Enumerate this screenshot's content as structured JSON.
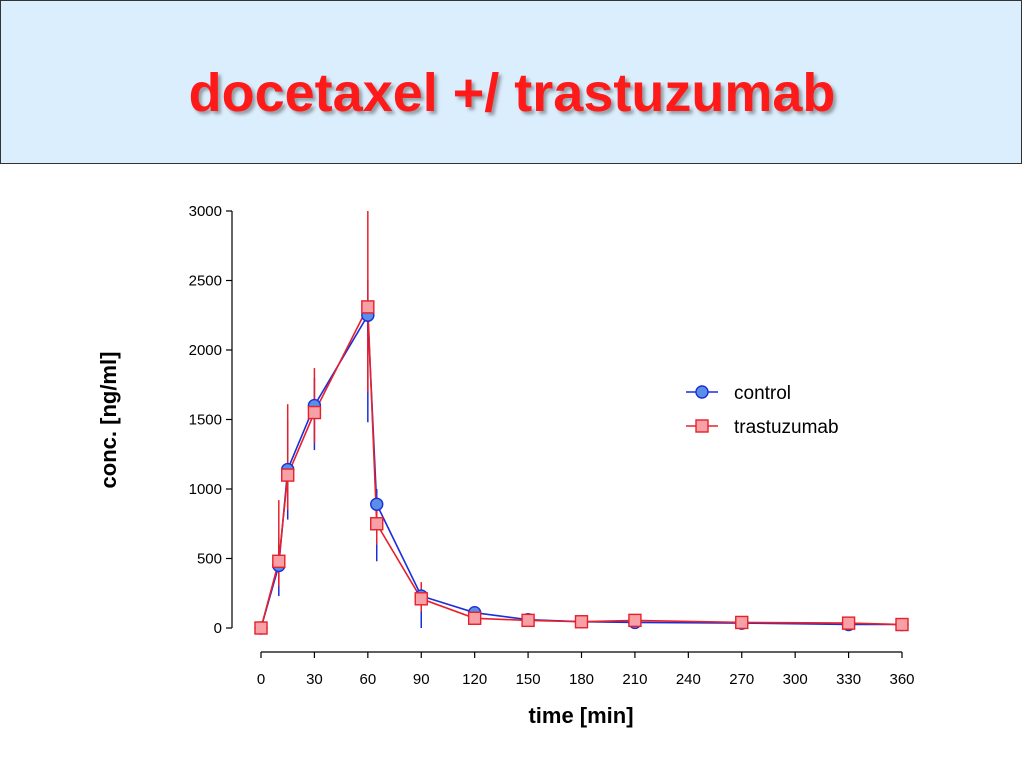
{
  "slide": {
    "title": "docetaxel +/ trastuzumab",
    "title_color": "#ff1a1a",
    "banner_color": "#dbeefe"
  },
  "chart_data": {
    "type": "line",
    "xlabel": "time [min]",
    "ylabel": "conc. [ng/ml]",
    "xlim": [
      0,
      360
    ],
    "ylim": [
      0,
      3000
    ],
    "x_ticks": [
      0,
      30,
      60,
      90,
      120,
      150,
      180,
      210,
      240,
      270,
      300,
      330,
      360
    ],
    "y_ticks": [
      0,
      500,
      1000,
      1500,
      2000,
      2500,
      3000
    ],
    "legend_position": "right",
    "grid": false,
    "series": [
      {
        "name": "control",
        "marker": "circle",
        "line_color": "#1a2fd8",
        "fill_color": "#5b8ee6",
        "points": [
          {
            "x": 0,
            "y": 0
          },
          {
            "x": 10,
            "y": 450,
            "err_low": 230,
            "err_high": 650
          },
          {
            "x": 15,
            "y": 1140,
            "err_low": 780,
            "err_high": 1500
          },
          {
            "x": 30,
            "y": 1600,
            "err_low": 1280,
            "err_high": 1800
          },
          {
            "x": 60,
            "y": 2250,
            "err_low": 1480,
            "err_high": 2500
          },
          {
            "x": 65,
            "y": 890,
            "err_low": 480,
            "err_high": 1000
          },
          {
            "x": 90,
            "y": 230,
            "err_low": 0,
            "err_high": 300
          },
          {
            "x": 120,
            "y": 110
          },
          {
            "x": 150,
            "y": 60
          },
          {
            "x": 180,
            "y": 45
          },
          {
            "x": 210,
            "y": 40
          },
          {
            "x": 270,
            "y": 35
          },
          {
            "x": 330,
            "y": 25
          },
          {
            "x": 360,
            "y": 25
          }
        ]
      },
      {
        "name": "trastuzumab",
        "marker": "square",
        "line_color": "#e8202a",
        "fill_color": "#f7a0a6",
        "points": [
          {
            "x": 0,
            "y": 0
          },
          {
            "x": 10,
            "y": 480,
            "err_low": 300,
            "err_high": 920
          },
          {
            "x": 15,
            "y": 1100,
            "err_low": 850,
            "err_high": 1610
          },
          {
            "x": 30,
            "y": 1550,
            "err_low": 1330,
            "err_high": 1870
          },
          {
            "x": 60,
            "y": 2310,
            "err_low": 1700,
            "err_high": 3000
          },
          {
            "x": 65,
            "y": 750,
            "err_low": 600,
            "err_high": 900
          },
          {
            "x": 90,
            "y": 210,
            "err_low": 120,
            "err_high": 330
          },
          {
            "x": 120,
            "y": 70
          },
          {
            "x": 150,
            "y": 55
          },
          {
            "x": 180,
            "y": 45
          },
          {
            "x": 210,
            "y": 55
          },
          {
            "x": 270,
            "y": 40
          },
          {
            "x": 330,
            "y": 35
          },
          {
            "x": 360,
            "y": 25
          }
        ]
      }
    ]
  }
}
